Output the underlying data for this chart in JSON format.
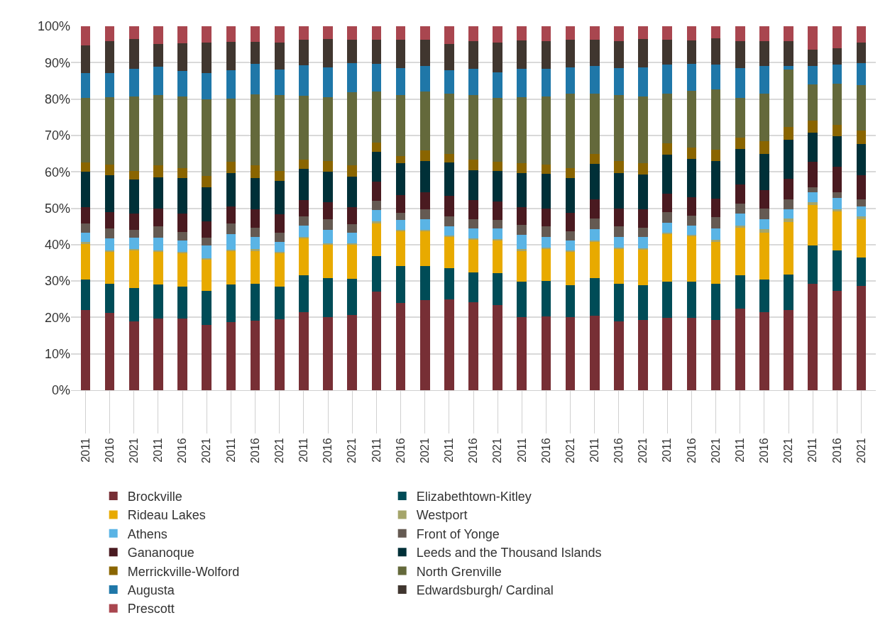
{
  "chart_data": {
    "type": "bar",
    "stacked": true,
    "grid": "y",
    "legend": "bottom",
    "categories": [
      "2011",
      "2016",
      "2021",
      "2011",
      "2016",
      "2021",
      "2011",
      "2016",
      "2021",
      "2011",
      "2016",
      "2021",
      "2011",
      "2016",
      "2021",
      "2011",
      "2016",
      "2021",
      "2011",
      "2016",
      "2021",
      "2011",
      "2016",
      "2021",
      "2011",
      "2016",
      "2021",
      "2011",
      "2016",
      "2021",
      "2011",
      "2016",
      "2021"
    ],
    "ylim": [
      0,
      100
    ],
    "yticks": [
      {
        "value": 0,
        "label": "0%"
      },
      {
        "value": 10,
        "label": "10%"
      },
      {
        "value": 20,
        "label": "20%"
      },
      {
        "value": 30,
        "label": "30%"
      },
      {
        "value": 40,
        "label": "40%"
      },
      {
        "value": 50,
        "label": "50%"
      },
      {
        "value": 60,
        "label": "60%"
      },
      {
        "value": 70,
        "label": "70%"
      },
      {
        "value": 80,
        "label": "80%"
      },
      {
        "value": 90,
        "label": "90%"
      },
      {
        "value": 100,
        "label": "100%"
      }
    ],
    "series": [
      {
        "name": "Brockville",
        "color": "#772f35",
        "values": [
          22,
          21.2,
          19,
          19.7,
          19.7,
          18,
          18.8,
          19.2,
          19.5,
          21.4,
          20,
          20.6,
          27,
          23.9,
          24.8,
          25,
          24.1,
          23.4,
          20,
          20.3,
          20.1,
          20.5,
          18.9,
          19.3,
          19.9,
          19.8,
          19.3,
          22.5,
          21.5,
          22.1,
          29.3,
          27.3,
          28.7
        ]
      },
      {
        "name": "Elizabethtown-Kitley",
        "color": "#004c57",
        "values": [
          8.5,
          8.1,
          9.1,
          9.3,
          8.8,
          9.2,
          10.2,
          10,
          9,
          10.1,
          10.8,
          10,
          9.8,
          10.2,
          9.3,
          8.6,
          8.3,
          8.7,
          9.8,
          9.8,
          8.8,
          10.3,
          10.4,
          9.5,
          9.9,
          10,
          9.9,
          9.1,
          9,
          9.7,
          10.4,
          11.1,
          7.8
        ]
      },
      {
        "name": "Rideau Lakes",
        "color": "#e8aa00",
        "values": [
          9.7,
          8.7,
          10.4,
          9.2,
          9.3,
          8.8,
          9.3,
          9.1,
          9.3,
          10.3,
          9.2,
          9.4,
          9.2,
          9.7,
          9.5,
          8.6,
          9.1,
          9.1,
          8.6,
          8.7,
          9.2,
          10,
          9.5,
          9.9,
          13,
          12.6,
          11.6,
          13,
          12.8,
          14.4,
          11.1,
          10.7,
          10.4
        ]
      },
      {
        "name": "Westport",
        "color": "#a5a56a",
        "values": [
          0.6,
          0.4,
          0.3,
          0.3,
          0.3,
          0.3,
          0.3,
          0.4,
          0.3,
          0.3,
          0.4,
          0.4,
          0.3,
          0.3,
          0.4,
          0.3,
          0.3,
          0.4,
          0.3,
          0.4,
          0.4,
          0.3,
          0.3,
          0.3,
          0.4,
          0.3,
          0.5,
          0.7,
          0.9,
          1,
          0.8,
          0.7,
          0.8
        ]
      },
      {
        "name": "Athens",
        "color": "#5ab4e5",
        "values": [
          2.4,
          3.3,
          3.1,
          3.5,
          3.1,
          3.5,
          4.3,
          3.5,
          2.7,
          3.1,
          3.6,
          2.9,
          3.3,
          2.6,
          3,
          2.6,
          2.7,
          2.8,
          3.9,
          3,
          2.7,
          3.1,
          3,
          3.1,
          2.8,
          2.6,
          3.1,
          3.3,
          2.8,
          2.5,
          2.7,
          3.1,
          2.8
        ]
      },
      {
        "name": "Front of Yonge",
        "color": "#655a52",
        "values": [
          2.6,
          2.7,
          2.2,
          3,
          2.3,
          2.2,
          2.9,
          2.4,
          2.5,
          2.5,
          2.9,
          2.3,
          2.4,
          2.1,
          2.7,
          2.7,
          2.4,
          2.3,
          2.9,
          2.8,
          2.4,
          3,
          3,
          2.6,
          3,
          2.7,
          3.1,
          2.6,
          2.9,
          2.7,
          1.4,
          1.5,
          2
        ]
      },
      {
        "name": "Gananoque",
        "color": "#4a1a20",
        "values": [
          4.5,
          4.6,
          4.4,
          5,
          5,
          4.3,
          4.6,
          5.1,
          5,
          4.5,
          4.7,
          4.7,
          5.4,
          4.9,
          4.7,
          5.7,
          5.3,
          5.1,
          4.8,
          4.9,
          5.1,
          5.3,
          4.9,
          5,
          5,
          5.1,
          5.1,
          5.3,
          5.1,
          5.6,
          7.1,
          7,
          6.6
        ]
      },
      {
        "name": "Leeds and the Thousand Islands",
        "color": "#003038",
        "values": [
          9.7,
          10,
          9.3,
          8.5,
          9.8,
          9.5,
          9.3,
          8.6,
          9.3,
          8.7,
          8.4,
          8.3,
          8.1,
          8.6,
          8.6,
          9,
          8.2,
          8.5,
          9.3,
          9.5,
          9.5,
          9.7,
          9.7,
          9.5,
          10.7,
          10.4,
          10.3,
          9.7,
          10,
          10.9,
          7.9,
          8.3,
          8.6
        ]
      },
      {
        "name": "Merrickville-Wolford",
        "color": "#8a6500",
        "values": [
          2.5,
          3,
          2.5,
          3.3,
          2.8,
          3,
          3,
          3.5,
          2.6,
          2.5,
          3,
          3.2,
          2.5,
          2,
          2.8,
          2.5,
          2.9,
          2.5,
          2.7,
          2.6,
          2.9,
          2.7,
          3.2,
          3.1,
          3.2,
          3.1,
          3.1,
          3.1,
          3.4,
          3.5,
          3.3,
          3.3,
          3.6
        ]
      },
      {
        "name": "North Grenville",
        "color": "#64693b",
        "values": [
          17.8,
          18.5,
          20.5,
          19.2,
          19.6,
          21.2,
          17.4,
          19.5,
          20.9,
          17.5,
          17.6,
          20,
          14,
          16.7,
          16.2,
          16.5,
          17.7,
          17.6,
          18.2,
          18.8,
          20.4,
          16.6,
          18.1,
          18.5,
          13.6,
          15.6,
          16.6,
          11.1,
          13.1,
          15.8,
          10,
          11.2,
          12.6
        ]
      },
      {
        "name": "Augusta",
        "color": "#1f77a8",
        "values": [
          6.9,
          6.7,
          7.5,
          7.8,
          7.1,
          7.2,
          7.9,
          8.3,
          7.1,
          8.4,
          8,
          8,
          7.6,
          7.5,
          7,
          6.5,
          7.4,
          7,
          7.9,
          7.5,
          7.1,
          7.5,
          7.5,
          7.9,
          8,
          7.4,
          6.9,
          8.1,
          7.5,
          0.8,
          5,
          5.2,
          6
        ]
      },
      {
        "name": "Edwardsburgh/ Cardinal",
        "color": "#40362f",
        "values": [
          7.6,
          8.8,
          8.1,
          6.4,
          7.5,
          8.4,
          7.7,
          6.2,
          7.4,
          7,
          7.9,
          6.4,
          6.7,
          7.7,
          7.3,
          7.1,
          7.6,
          8.1,
          7.7,
          7.7,
          7.7,
          7.3,
          7.5,
          7.8,
          6.8,
          6.5,
          7.1,
          7.4,
          7,
          6.9,
          4.6,
          4.5,
          5.7
        ]
      },
      {
        "name": "Prescott",
        "color": "#a9464f",
        "values": [
          5.2,
          4,
          3.6,
          4.8,
          4.7,
          4.4,
          4.3,
          4.2,
          4.4,
          3.7,
          3.5,
          3.8,
          3.7,
          3.8,
          3.7,
          4.9,
          4,
          4.5,
          3.9,
          4,
          3.7,
          3.7,
          4,
          3.5,
          3.7,
          3.9,
          3.4,
          4.1,
          4,
          4.1,
          6.4,
          6.1,
          4.4
        ]
      }
    ]
  }
}
